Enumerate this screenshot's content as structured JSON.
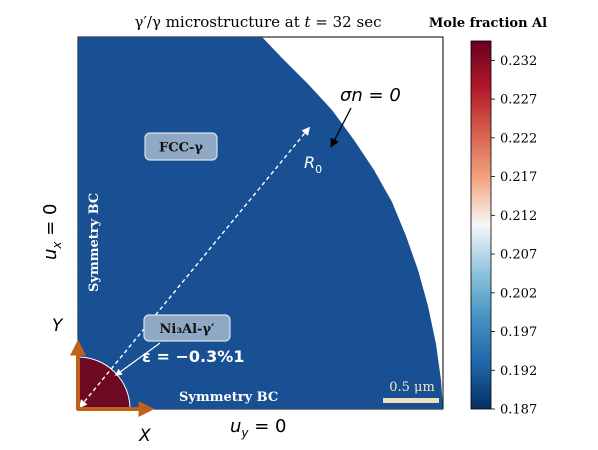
{
  "title": {
    "prefix": "γ′/γ microstructure at ",
    "variable": "t",
    "suffix": " = 32 sec"
  },
  "colorbar": {
    "label": "Mole fraction Al",
    "min": 0.187,
    "max": 0.2345,
    "ticks": [
      "0.232",
      "0.227",
      "0.222",
      "0.217",
      "0.212",
      "0.207",
      "0.202",
      "0.197",
      "0.192",
      "0.187"
    ],
    "colormap": "RdBu_r",
    "stops": [
      "#053061",
      "#2166ac",
      "#4393c3",
      "#92c5de",
      "#f7f7f7",
      "#f4a582",
      "#d6604d",
      "#b2182b",
      "#67001f"
    ]
  },
  "domain": {
    "matrix_color": "#194f93",
    "precipitate_color": "#6b0a22"
  },
  "labels": {
    "fcc": "FCC-γ",
    "precipitate": "Ni₃Al-γ′",
    "strain": "ε = −0.3%1",
    "symmetry_left": "Symmetry BC",
    "symmetry_bottom": "Symmetry BC",
    "radius_main": "R",
    "radius_sub": "0",
    "traction": "σn = 0",
    "ux_main": "u",
    "ux_sub": "x",
    "ux_eq": " = 0",
    "uy_main": "u",
    "uy_sub": "y",
    "uy_eq": " = 0",
    "axis_x": "X",
    "axis_y": "Y",
    "scalebar": "0.5 μm"
  },
  "colors": {
    "axis_arrows": "#c0601a",
    "label_box_fill": "#8fa8c4",
    "label_box_stroke": "#d8e0ea",
    "scalebar": "#efe0c0"
  }
}
